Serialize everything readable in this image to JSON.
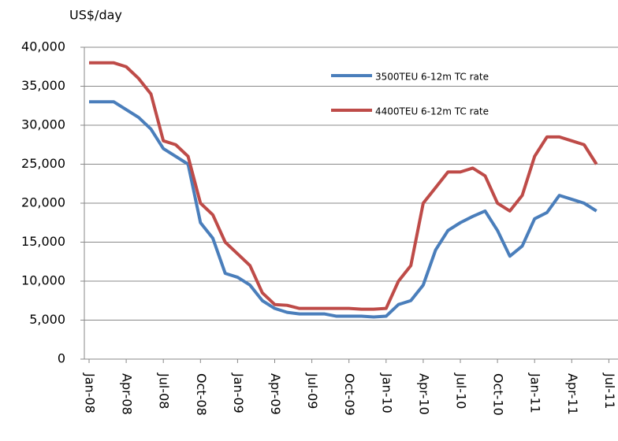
{
  "chart_data": {
    "type": "line",
    "y_label": "US$/day",
    "categories": [
      "Jan-08",
      null,
      null,
      "Apr-08",
      null,
      null,
      "Jul-08",
      null,
      null,
      "Oct-08",
      null,
      null,
      "Jan-09",
      null,
      null,
      "Apr-09",
      null,
      null,
      "Jul-09",
      null,
      null,
      "Oct-09",
      null,
      null,
      "Jan-10",
      null,
      null,
      "Apr-10",
      null,
      null,
      "Jul-10",
      null,
      null,
      "Oct-10",
      null,
      null,
      "Jan-11",
      null,
      null,
      "Apr-11",
      null,
      null,
      "Jul-11"
    ],
    "series": [
      {
        "name": "3500TEU 6-12m TC rate",
        "color": "#4a7ebb",
        "values": [
          33000,
          33000,
          33000,
          32000,
          31000,
          29500,
          27000,
          26000,
          25000,
          17500,
          15500,
          11000,
          10500,
          9500,
          7500,
          6500,
          6000,
          5800,
          5800,
          5800,
          5500,
          5500,
          5500,
          5400,
          5500,
          7000,
          7500,
          9500,
          14000,
          16500,
          17500,
          18300,
          19000,
          16500,
          13200,
          14500,
          18000,
          18800,
          21000,
          20500,
          20000,
          19000,
          null
        ]
      },
      {
        "name": "4400TEU 6-12m TC rate",
        "color": "#be4b48",
        "values": [
          38000,
          38000,
          38000,
          37500,
          36000,
          34000,
          28000,
          27500,
          26000,
          20000,
          18500,
          15000,
          13500,
          12000,
          8500,
          7000,
          6900,
          6500,
          6500,
          6500,
          6500,
          6500,
          6400,
          6400,
          6500,
          10000,
          12000,
          20000,
          22000,
          24000,
          24000,
          24500,
          23500,
          20000,
          19000,
          21000,
          26000,
          28500,
          28500,
          28000,
          27500,
          25000,
          null
        ]
      }
    ],
    "ylim": [
      0,
      40000
    ],
    "yticks": [
      0,
      {
        "value": 5000,
        "label": "5,000"
      },
      {
        "value": 10000,
        "label": "10,000"
      },
      {
        "value": 15000,
        "label": "15,000"
      },
      {
        "value": 20000,
        "label": "20,000"
      },
      {
        "value": 25000,
        "label": "25,000"
      },
      {
        "value": 30000,
        "label": "30,000"
      },
      {
        "value": 35000,
        "label": "35,000"
      },
      {
        "value": 40000,
        "label": "40,000"
      }
    ],
    "grid": true
  }
}
